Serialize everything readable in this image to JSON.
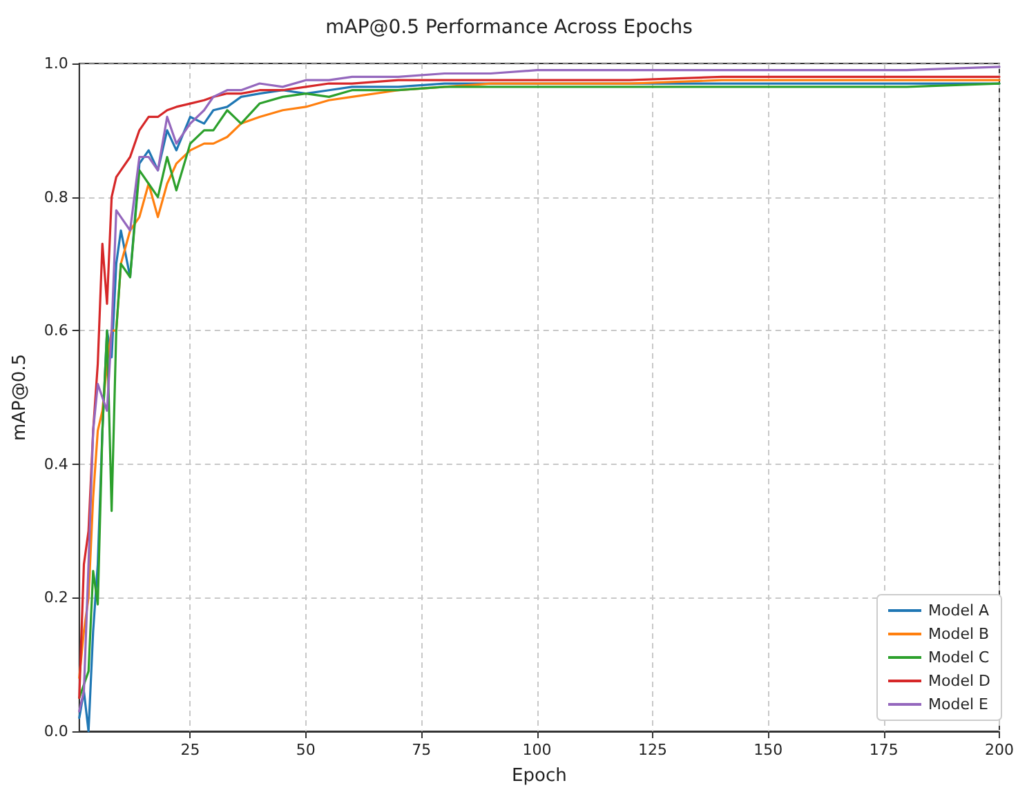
{
  "chart_data": {
    "type": "line",
    "title": "mAP@0.5 Performance Across Epochs",
    "xlabel": "Epoch",
    "ylabel": "mAP@0.5",
    "x": [
      1,
      2,
      3,
      4,
      5,
      6,
      7,
      8,
      9,
      10,
      12,
      14,
      16,
      18,
      20,
      22,
      25,
      28,
      30,
      33,
      36,
      40,
      45,
      50,
      55,
      60,
      70,
      80,
      90,
      100,
      120,
      140,
      160,
      180,
      200
    ],
    "series": [
      {
        "name": "Model A",
        "color": "#1f77b4",
        "values": [
          0.02,
          0.06,
          0.0,
          0.15,
          0.25,
          0.45,
          0.6,
          0.56,
          0.7,
          0.75,
          0.68,
          0.85,
          0.87,
          0.84,
          0.9,
          0.87,
          0.92,
          0.91,
          0.93,
          0.935,
          0.95,
          0.955,
          0.96,
          0.955,
          0.96,
          0.965,
          0.965,
          0.97,
          0.97,
          0.97,
          0.97,
          0.97,
          0.97,
          0.97,
          0.97
        ]
      },
      {
        "name": "Model B",
        "color": "#ff7f0e",
        "values": [
          0.08,
          0.15,
          0.2,
          0.35,
          0.45,
          0.48,
          0.55,
          0.6,
          0.6,
          0.7,
          0.75,
          0.77,
          0.82,
          0.77,
          0.82,
          0.85,
          0.87,
          0.88,
          0.88,
          0.89,
          0.91,
          0.92,
          0.93,
          0.935,
          0.945,
          0.95,
          0.96,
          0.965,
          0.97,
          0.97,
          0.97,
          0.975,
          0.975,
          0.975,
          0.975
        ]
      },
      {
        "name": "Model C",
        "color": "#2ca02c",
        "values": [
          0.05,
          0.07,
          0.09,
          0.24,
          0.19,
          0.45,
          0.6,
          0.33,
          0.6,
          0.7,
          0.68,
          0.84,
          0.82,
          0.8,
          0.86,
          0.81,
          0.88,
          0.9,
          0.9,
          0.93,
          0.91,
          0.94,
          0.95,
          0.955,
          0.95,
          0.96,
          0.96,
          0.965,
          0.965,
          0.965,
          0.965,
          0.965,
          0.965,
          0.965,
          0.97
        ]
      },
      {
        "name": "Model D",
        "color": "#d62728",
        "values": [
          0.05,
          0.25,
          0.3,
          0.45,
          0.55,
          0.73,
          0.64,
          0.8,
          0.83,
          0.84,
          0.86,
          0.9,
          0.92,
          0.92,
          0.93,
          0.935,
          0.94,
          0.945,
          0.95,
          0.955,
          0.955,
          0.96,
          0.96,
          0.965,
          0.97,
          0.97,
          0.975,
          0.975,
          0.975,
          0.975,
          0.975,
          0.98,
          0.98,
          0.98,
          0.98
        ]
      },
      {
        "name": "Model E",
        "color": "#9467bd",
        "values": [
          0.03,
          0.06,
          0.25,
          0.45,
          0.52,
          0.5,
          0.48,
          0.6,
          0.78,
          0.77,
          0.75,
          0.86,
          0.86,
          0.84,
          0.92,
          0.88,
          0.91,
          0.93,
          0.95,
          0.96,
          0.96,
          0.97,
          0.965,
          0.975,
          0.975,
          0.98,
          0.98,
          0.985,
          0.985,
          0.99,
          0.99,
          0.99,
          0.99,
          0.99,
          0.995
        ]
      }
    ],
    "xlim": [
      1,
      200
    ],
    "xticks": [
      25,
      50,
      75,
      100,
      125,
      150,
      175,
      200
    ],
    "ylim": [
      0,
      1
    ],
    "yticks": [
      {
        "value": 0,
        "label": "0.0"
      },
      {
        "value": 0.2,
        "label": "0.2"
      },
      {
        "value": 0.4,
        "label": "0.4"
      },
      {
        "value": 0.6,
        "label": "0.6"
      },
      {
        "value": 0.8,
        "label": "0.8"
      },
      {
        "value": 1,
        "label": "1.0"
      }
    ],
    "grid": true,
    "legend": "bottom right",
    "marker": "none",
    "line_style": "solid"
  }
}
